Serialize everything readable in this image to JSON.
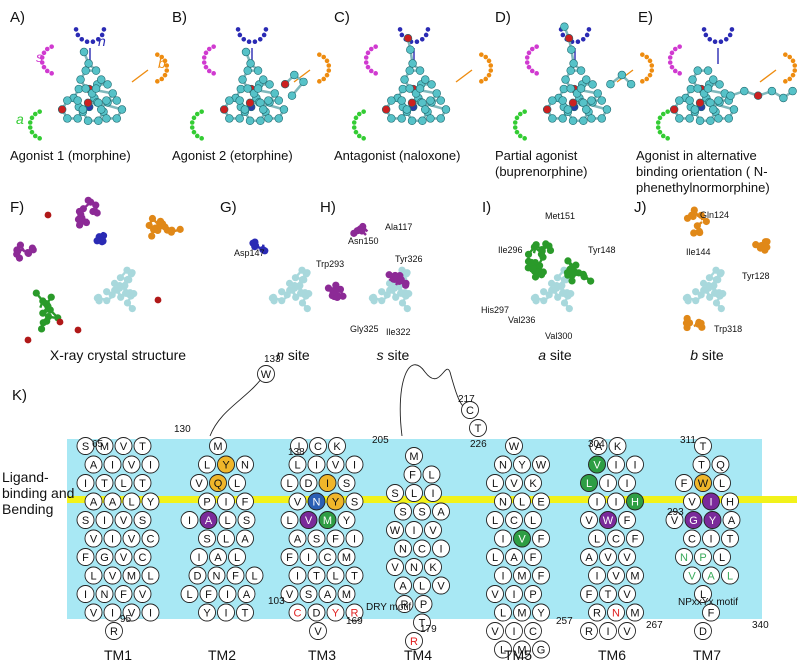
{
  "top_panels": [
    {
      "letter": "A)",
      "caption": [
        "Agonist 1 (morphine)"
      ]
    },
    {
      "letter": "B)",
      "caption": [
        "Agonist 2 (etorphine)"
      ]
    },
    {
      "letter": "C)",
      "caption": [
        "Antagonist (naloxone)"
      ]
    },
    {
      "letter": "D)",
      "caption": [
        "Partial agonist",
        "(buprenorphine)"
      ]
    },
    {
      "letter": "E)",
      "caption": [
        "Agonist in alternative",
        "binding orientation ( N-",
        "phenethylnormorphine)"
      ]
    }
  ],
  "site_labels": {
    "n": "n",
    "s": "s",
    "b": "b",
    "a": "a"
  },
  "mid_panels": [
    {
      "letter": "F)",
      "caption_italic": "",
      "caption_plain": "X-ray crystal structure"
    },
    {
      "letter": "G)",
      "caption_italic": "n",
      "caption_plain": " site"
    },
    {
      "letter": "H)",
      "caption_italic": "s",
      "caption_plain": " site"
    },
    {
      "letter": "I)",
      "caption_italic": "a",
      "caption_plain": " site"
    },
    {
      "letter": "J)",
      "caption_italic": "b",
      "caption_plain": " site"
    }
  ],
  "residue_labels": {
    "G": [
      "Asp147"
    ],
    "H": [
      "Ala117",
      "Asn150",
      "Trp293",
      "Tyr326",
      "Gly325",
      "Ile322"
    ],
    "I": [
      "Met151",
      "Ile296",
      "Tyr148",
      "His297",
      "Val236",
      "Val300"
    ],
    "J": [
      "Gln124",
      "Ile144",
      "Tyr128",
      "Trp318"
    ]
  },
  "panel_k": {
    "letter": "K)",
    "side_label_lines": [
      "Ligand-",
      "binding and",
      "Bending"
    ],
    "colors": {
      "membrane": "#a8e8f4",
      "band": "#f2f21a",
      "yellow_res": "#f0b62a",
      "purple_res": "#7a2a9a",
      "green_res": "#2e9e44",
      "blue_res": "#2a5fb4",
      "red_text": "#e02020",
      "green_text": "#3aaa5a"
    },
    "motif_labels": {
      "tm3": "DRY motif",
      "tm7": "NPxxYx motif"
    },
    "helix_labels": [
      "TM1",
      "TM2",
      "TM3",
      "TM4",
      "TM5",
      "TM6",
      "TM7"
    ],
    "numbers": [
      "65",
      "95",
      "130",
      "133",
      "103",
      "138",
      "169",
      "205",
      "217",
      "179",
      "226",
      "257",
      "304",
      "293",
      "267",
      "311",
      "340"
    ],
    "helices": [
      {
        "name": "TM1",
        "start": "65",
        "end": "95",
        "rows": [
          [
            "S",
            "M",
            "V",
            "T"
          ],
          [
            "A",
            "I",
            "V",
            "I"
          ],
          [
            "I",
            "T",
            "L",
            "T"
          ],
          [
            "A",
            "A",
            "L",
            "Y"
          ],
          [
            "S",
            "I",
            "V",
            "S"
          ],
          [
            "V",
            "I",
            "V",
            "C"
          ],
          [
            "F",
            "G",
            "V",
            "C"
          ],
          [
            "L",
            "V",
            "M",
            "L"
          ],
          [
            "I",
            "N",
            "F",
            "V"
          ],
          [
            "V",
            "I",
            "V",
            "I"
          ],
          [
            "R"
          ]
        ]
      },
      {
        "name": "TM2",
        "start": "103",
        "end": "130",
        "rows": [
          [
            "M"
          ],
          [
            "L",
            "Y",
            "N"
          ],
          [
            "V",
            "Q",
            "L"
          ],
          [
            "P",
            "I",
            "F"
          ],
          [
            "I",
            "A",
            "L",
            "S"
          ],
          [
            "S",
            "L",
            "A"
          ],
          [
            "I",
            "A",
            "L"
          ],
          [
            "D",
            "N",
            "F",
            "L"
          ],
          [
            "L",
            "F",
            "I",
            "A"
          ],
          [
            "Y",
            "I",
            "T"
          ]
        ]
      },
      {
        "name": "TM3",
        "start": "138",
        "end": "169",
        "rows": [
          [
            "I",
            "C",
            "K"
          ],
          [
            "L",
            "I",
            "V",
            "I"
          ],
          [
            "L",
            "D",
            "I",
            "S"
          ],
          [
            "V",
            "N",
            "Y",
            "S"
          ],
          [
            "L",
            "V",
            "M",
            "Y"
          ],
          [
            "A",
            "S",
            "F",
            "I"
          ],
          [
            "F",
            "I",
            "C",
            "M"
          ],
          [
            "I",
            "T",
            "L",
            "T"
          ],
          [
            "V",
            "S",
            "A",
            "M"
          ],
          [
            "C",
            "D",
            "Y",
            "R"
          ],
          [
            "V"
          ]
        ]
      },
      {
        "name": "TM4",
        "start": "179",
        "end": "205",
        "rows": [
          [
            "M"
          ],
          [
            "F",
            "L"
          ],
          [
            "S",
            "L",
            "I"
          ],
          [
            "S",
            "S",
            "A"
          ],
          [
            "W",
            "I",
            "V"
          ],
          [
            "N",
            "C",
            "I"
          ],
          [
            "V",
            "N",
            "K"
          ],
          [
            "A",
            "L",
            "V"
          ],
          [
            "R",
            "P"
          ],
          [
            "T"
          ],
          [
            "R"
          ]
        ]
      },
      {
        "name": "TM5",
        "start": "226",
        "end": "257",
        "rows": [
          [
            "W"
          ],
          [
            "N",
            "Y",
            "W"
          ],
          [
            "L",
            "V",
            "K"
          ],
          [
            "N",
            "L",
            "E"
          ],
          [
            "L",
            "C",
            "L"
          ],
          [
            "I",
            "V",
            "F"
          ],
          [
            "L",
            "A",
            "F"
          ],
          [
            "I",
            "M",
            "F"
          ],
          [
            "V",
            "I",
            "P"
          ],
          [
            "L",
            "M",
            "Y"
          ],
          [
            "V",
            "I",
            "C"
          ],
          [
            "L",
            "M",
            "G"
          ]
        ]
      },
      {
        "name": "TM6",
        "start": "267",
        "end": "304",
        "rows": [
          [
            "A",
            "K"
          ],
          [
            "V",
            "I",
            "I"
          ],
          [
            "L",
            "I",
            "I"
          ],
          [
            "I",
            "I",
            "H"
          ],
          [
            "V",
            "W",
            "F"
          ],
          [
            "L",
            "C",
            "F"
          ],
          [
            "A",
            "V",
            "V"
          ],
          [
            "I",
            "V",
            "M"
          ],
          [
            "F",
            "T",
            "V"
          ],
          [
            "R",
            "N",
            "M"
          ],
          [
            "R",
            "I",
            "V"
          ]
        ]
      },
      {
        "name": "TM7",
        "start": "311",
        "end": "340",
        "rows": [
          [
            "T"
          ],
          [
            "T",
            "Q"
          ],
          [
            "F",
            "W",
            "L"
          ],
          [
            "V",
            "I",
            "H"
          ],
          [
            "V",
            "G",
            "Y",
            "A"
          ],
          [
            "C",
            "I",
            "T"
          ],
          [
            "N",
            "P",
            "L"
          ],
          [
            "V",
            "A",
            "L"
          ],
          [
            "L"
          ],
          [
            "F"
          ],
          [
            "D"
          ]
        ]
      }
    ]
  }
}
